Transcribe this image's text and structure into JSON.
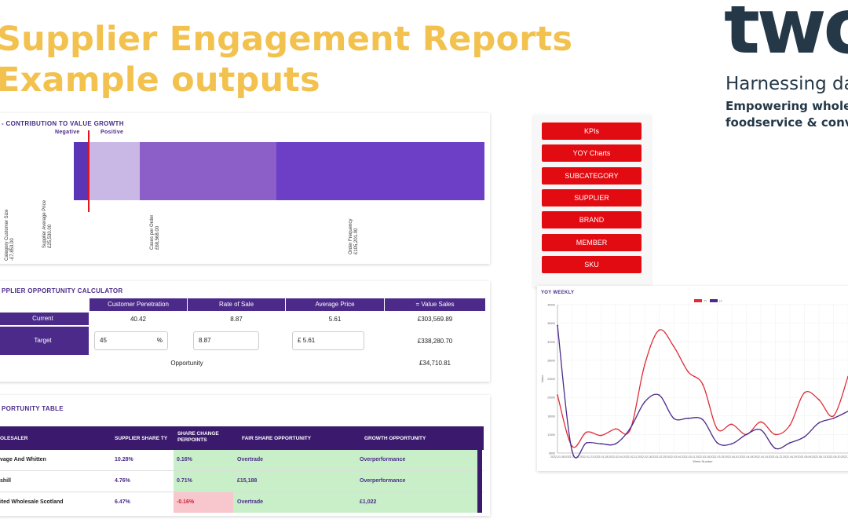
{
  "title": {
    "line1": "Supplier Engagement Reports",
    "line2": "Example outputs"
  },
  "logo": {
    "word": "two",
    "headline": "Harnessing da",
    "line1": "Empowering wholesa",
    "line2": "foodservice & conveni"
  },
  "contribution": {
    "title": "- CONTRIBUTION TO VALUE GROWTH",
    "negative_label": "Negative",
    "positive_label": "Positive",
    "labels": [
      {
        "name": "Category Customer Size",
        "value": "-£7,853.00"
      },
      {
        "name": "Supplier Average Price",
        "value": "£25,530.00"
      },
      {
        "name": "Cases per Order",
        "value": "£68,568.00"
      },
      {
        "name": "Order Frequency",
        "value": "£105,201.00"
      }
    ],
    "colors": {
      "bar1": "#c9b8e6",
      "bar2": "#8c5fc8",
      "bar3": "#6c3fc6",
      "bar0": "#5b35b5",
      "zero_line": "#e3141b"
    }
  },
  "calculator": {
    "title": "PPLIER OPPORTUNITY CALCULATOR",
    "headers": [
      "Customer Penetration",
      "Rate of Sale",
      "Average Price",
      "= Value Sales"
    ],
    "current_label": "Current",
    "current": [
      "40.42",
      "8.87",
      "5.61",
      "£303,569.89"
    ],
    "target_label": "Target",
    "target_penetration": "45",
    "target_penetration_unit": "%",
    "target_rate": "8.87",
    "target_price_prefix": "£",
    "target_price": "5.61",
    "target_value": "£338,280.70",
    "opportunity_label": "Opportunity",
    "opportunity_value": "£34,710.81"
  },
  "opp_table": {
    "title": "PORTUNITY TABLE",
    "headers": [
      "OLESALER",
      "SUPPLIER SHARE TY",
      "SHARE CHANGE PERPOINTS",
      "FAIR SHARE OPPORTUNITY",
      "GROWTH OPPORTUNITY"
    ],
    "rows": [
      {
        "name": "vage And Whitten",
        "share": "10.28%",
        "change": "0.16%",
        "fair": "Overtrade",
        "growth": "Overperformance"
      },
      {
        "name": "shill",
        "share": "4.76%",
        "change": "0.71%",
        "fair": "£15,188",
        "growth": "Overperformance"
      },
      {
        "name": "ited Wholesale Scotland",
        "share": "6.47%",
        "change": "-0.16%",
        "fair": "Overtrade",
        "growth": "£1,022"
      }
    ]
  },
  "nav": {
    "buttons": [
      "KPIs",
      "YOY Charts",
      "SUBCATEGORY",
      "SUPPLIER",
      "BRAND",
      "MEMBER",
      "SKU"
    ]
  },
  "yoy": {
    "title": "YOY WEEKLY",
    "legend": [
      "TY",
      "LY"
    ],
    "xlabel": "Week Number",
    "ylabel": "Value"
  },
  "chart_data": {
    "type": "line",
    "title": "YOY WEEKLY",
    "xlabel": "Week Number",
    "ylabel": "Value",
    "x": [
      "2022-01-08",
      "2022-01-14",
      "2022-01-21",
      "2022-01-28",
      "2022-02-04",
      "2022-02-11",
      "2022-02-18",
      "2022-02-25",
      "2022-03-04",
      "2022-03-11",
      "2022-03-18",
      "2022-03-25",
      "2022-04-01",
      "2022-04-08",
      "2022-04-15",
      "2022-04-22",
      "2022-04-29",
      "2022-05-06",
      "2022-05-13",
      "2022-05-20",
      "2022-05-27"
    ],
    "series": [
      {
        "name": "TY",
        "color": "#e02c37",
        "values": [
          20500,
          9500,
          12500,
          11800,
          13200,
          13000,
          27000,
          34500,
          31000,
          25500,
          22800,
          13200,
          14200,
          12000,
          14700,
          12000,
          14000,
          21000,
          19500,
          16000,
          24500
        ]
      },
      {
        "name": "LY",
        "color": "#4b2a8a",
        "values": [
          35500,
          8500,
          10200,
          10000,
          10000,
          13300,
          19000,
          20500,
          15500,
          15500,
          15200,
          10200,
          10000,
          12000,
          13000,
          9000,
          10200,
          11500,
          14500,
          15500,
          17000
        ]
      }
    ],
    "ylim": [
      8000,
      40000
    ]
  }
}
